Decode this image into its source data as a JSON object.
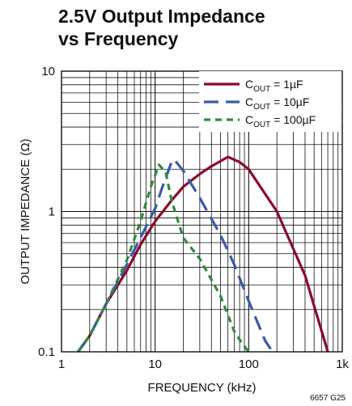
{
  "chart_data": {
    "type": "line",
    "title_line1": "2.5V Output Impedance",
    "title_line2": "vs Frequency",
    "xlabel": "FREQUENCY (kHz)",
    "ylabel": "OUTPUT IMPEDANCE (Ω)",
    "x_scale": "log",
    "y_scale": "log",
    "xlim": [
      1,
      1000
    ],
    "ylim": [
      0.1,
      10
    ],
    "x_ticks": [
      {
        "value": 1,
        "label": "1"
      },
      {
        "value": 10,
        "label": "10"
      },
      {
        "value": 100,
        "label": "100"
      },
      {
        "value": 1000,
        "label": "1k"
      }
    ],
    "y_ticks": [
      {
        "value": 0.1,
        "label": "0.1"
      },
      {
        "value": 1,
        "label": "1"
      },
      {
        "value": 10,
        "label": "10"
      }
    ],
    "grid": true,
    "legend_position": "top-right",
    "series": [
      {
        "label_main": "C",
        "label_sub": "OUT",
        "label_rest": " = 1µF",
        "color": "#8b0a2a",
        "dash": "solid",
        "x": [
          1.5,
          2,
          3,
          5,
          7,
          10,
          15,
          20,
          30,
          40,
          60,
          80,
          100,
          200,
          400,
          700
        ],
        "y": [
          0.1,
          0.13,
          0.22,
          0.38,
          0.58,
          0.85,
          1.2,
          1.5,
          1.85,
          2.1,
          2.45,
          2.25,
          2.0,
          1.0,
          0.35,
          0.1
        ]
      },
      {
        "label_main": "C",
        "label_sub": "OUT",
        "label_rest": " = 10µF",
        "color": "#3a5aa8",
        "dash": "long-dash",
        "x": [
          1.5,
          2,
          3,
          5,
          7,
          10,
          12,
          15,
          16,
          20,
          30,
          50,
          70,
          100,
          150,
          180
        ],
        "y": [
          0.1,
          0.13,
          0.22,
          0.42,
          0.65,
          1.05,
          1.5,
          2.25,
          2.35,
          1.95,
          1.25,
          0.68,
          0.42,
          0.23,
          0.12,
          0.1
        ]
      },
      {
        "label_main": "C",
        "label_sub": "OUT",
        "label_rest": " = 100µF",
        "color": "#2f8a3e",
        "dash": "short-dash",
        "x": [
          1.5,
          2,
          3,
          5,
          7,
          9,
          11,
          13,
          15,
          20,
          30,
          50,
          70,
          85,
          100
        ],
        "y": [
          0.1,
          0.13,
          0.22,
          0.45,
          0.85,
          1.5,
          2.15,
          1.9,
          1.2,
          0.65,
          0.46,
          0.25,
          0.14,
          0.115,
          0.1
        ]
      }
    ]
  },
  "figure_id": "6657 G25"
}
